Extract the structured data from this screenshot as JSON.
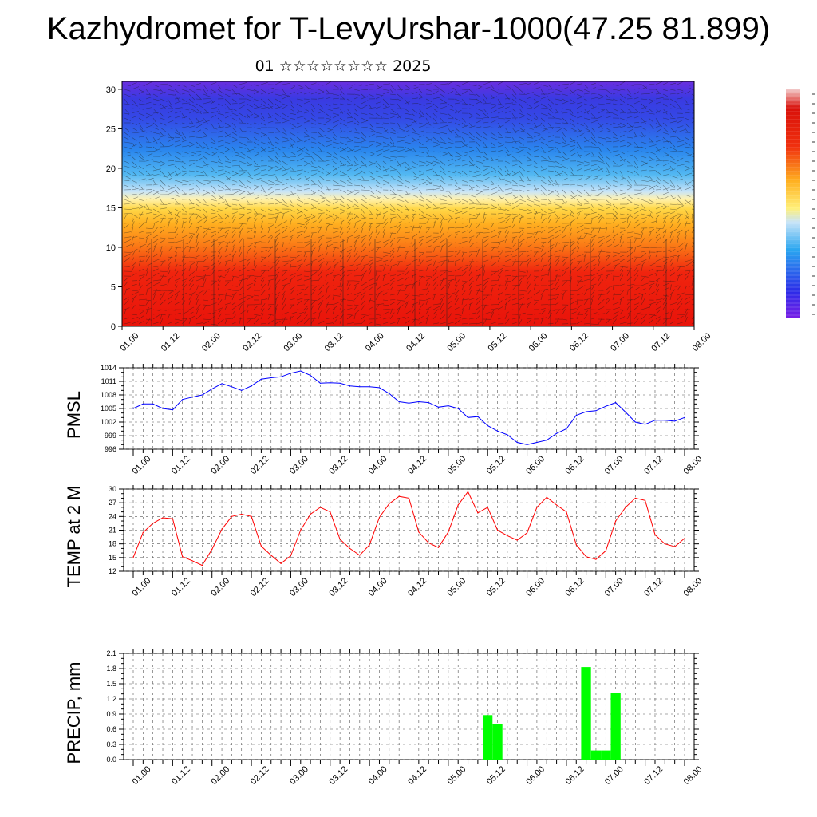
{
  "title": "Kazhydromet for T-LevyUrshar-1000(47.25 81.899)",
  "subtitle": "01 ☆☆☆☆☆☆☆☆ 2025",
  "time_ticks": [
    "01.00",
    "01.12",
    "02.00",
    "02.12",
    "03.00",
    "03.12",
    "04.00",
    "04.12",
    "05.00",
    "05.12",
    "06.00",
    "06.12",
    "07.00",
    "07.12",
    "08.00"
  ],
  "chart_data": [
    {
      "type": "heatmap",
      "name": "upper-air cross-section",
      "x_ticks": [
        "01.00",
        "01.12",
        "02.00",
        "02.12",
        "03.00",
        "03.12",
        "04.00",
        "04.12",
        "05.00",
        "05.12",
        "06.00",
        "06.12",
        "07.00",
        "07.12",
        "08.00"
      ],
      "y_ticks": [
        "0",
        "5",
        "10",
        "15",
        "20",
        "25",
        "30"
      ],
      "ylim": [
        0,
        31
      ],
      "colors": {
        "low_levels": "#e8160c",
        "mid_levels": "#ffd23a",
        "transition": "#cfe4f4",
        "upper_levels": "#3a50e8",
        "top": "#6a2ee0"
      },
      "overlay": "wind barbs"
    },
    {
      "type": "line",
      "ylabel": "PMSL",
      "color": "#0000ff",
      "y_ticks": [
        "996",
        "999",
        "1002",
        "1005",
        "1008",
        "1011",
        "1014"
      ],
      "ylim": [
        996,
        1014
      ],
      "x": [
        0,
        3,
        6,
        9,
        12,
        15,
        18,
        21,
        24,
        27,
        30,
        33,
        36,
        39,
        42,
        45,
        48,
        51,
        54,
        57,
        60,
        63,
        66,
        69,
        72,
        75,
        78,
        81,
        84,
        87,
        90,
        93,
        96,
        99,
        102,
        105,
        108,
        111,
        114,
        117,
        120,
        123,
        126,
        129,
        132,
        135,
        138,
        141,
        144,
        147,
        150,
        153,
        156,
        159,
        162,
        165,
        168
      ],
      "values": [
        1005.0,
        1006.0,
        1006.0,
        1005.0,
        1004.7,
        1007.0,
        1007.5,
        1008.0,
        1009.3,
        1010.5,
        1009.8,
        1009.0,
        1010.0,
        1011.5,
        1011.8,
        1012.0,
        1012.8,
        1013.3,
        1012.3,
        1010.6,
        1010.7,
        1010.6,
        1010.0,
        1009.8,
        1009.8,
        1009.6,
        1008.3,
        1006.5,
        1006.2,
        1006.5,
        1006.3,
        1005.3,
        1005.6,
        1005.0,
        1003.0,
        1003.2,
        1001.2,
        1000.0,
        999.2,
        997.5,
        997.0,
        997.5,
        998.0,
        999.5,
        1000.5,
        1003.5,
        1004.3,
        1004.5,
        1005.5,
        1006.3,
        1004.2,
        1002.0,
        1001.5,
        1002.4,
        1002.4,
        1002.2,
        1003.0
      ]
    },
    {
      "type": "line",
      "ylabel": "TEMP at 2 M",
      "color": "#ff0000",
      "y_ticks": [
        "12",
        "15",
        "18",
        "21",
        "24",
        "27",
        "30"
      ],
      "ylim": [
        12,
        30
      ],
      "x": [
        0,
        3,
        6,
        9,
        12,
        15,
        18,
        21,
        24,
        27,
        30,
        33,
        36,
        39,
        42,
        45,
        48,
        51,
        54,
        57,
        60,
        63,
        66,
        69,
        72,
        75,
        78,
        81,
        84,
        87,
        90,
        93,
        96,
        99,
        102,
        105,
        108,
        111,
        114,
        117,
        120,
        123,
        126,
        129,
        132,
        135,
        138,
        141,
        144,
        147,
        150,
        153,
        156,
        159,
        162,
        165,
        168
      ],
      "values": [
        15.0,
        20.5,
        22.5,
        23.7,
        23.5,
        15.2,
        14.3,
        13.3,
        16.8,
        21.2,
        24.0,
        24.5,
        24.0,
        17.5,
        15.5,
        13.7,
        15.4,
        21.0,
        24.5,
        26.0,
        25.0,
        19.0,
        17.0,
        15.5,
        17.8,
        23.8,
        26.8,
        28.4,
        28.0,
        20.6,
        18.2,
        17.2,
        20.6,
        26.5,
        29.4,
        24.8,
        26.0,
        21.0,
        19.8,
        18.8,
        20.4,
        26.0,
        28.2,
        26.5,
        25.0,
        17.8,
        15.2,
        14.6,
        16.5,
        23.0,
        26.0,
        28.0,
        27.5,
        20.0,
        18.0,
        17.4,
        19.2
      ]
    },
    {
      "type": "bar",
      "ylabel": "PRECIP, mm",
      "color": "#00ff00",
      "y_ticks": [
        "0.0",
        "0.3",
        "0.6",
        "0.9",
        "1.2",
        "1.5",
        "1.8",
        "2.1"
      ],
      "ylim": [
        0,
        2.1
      ],
      "x": [
        108,
        111,
        138,
        141,
        144,
        147
      ],
      "values": [
        0.88,
        0.7,
        1.83,
        0.18,
        0.18,
        1.32
      ]
    }
  ]
}
